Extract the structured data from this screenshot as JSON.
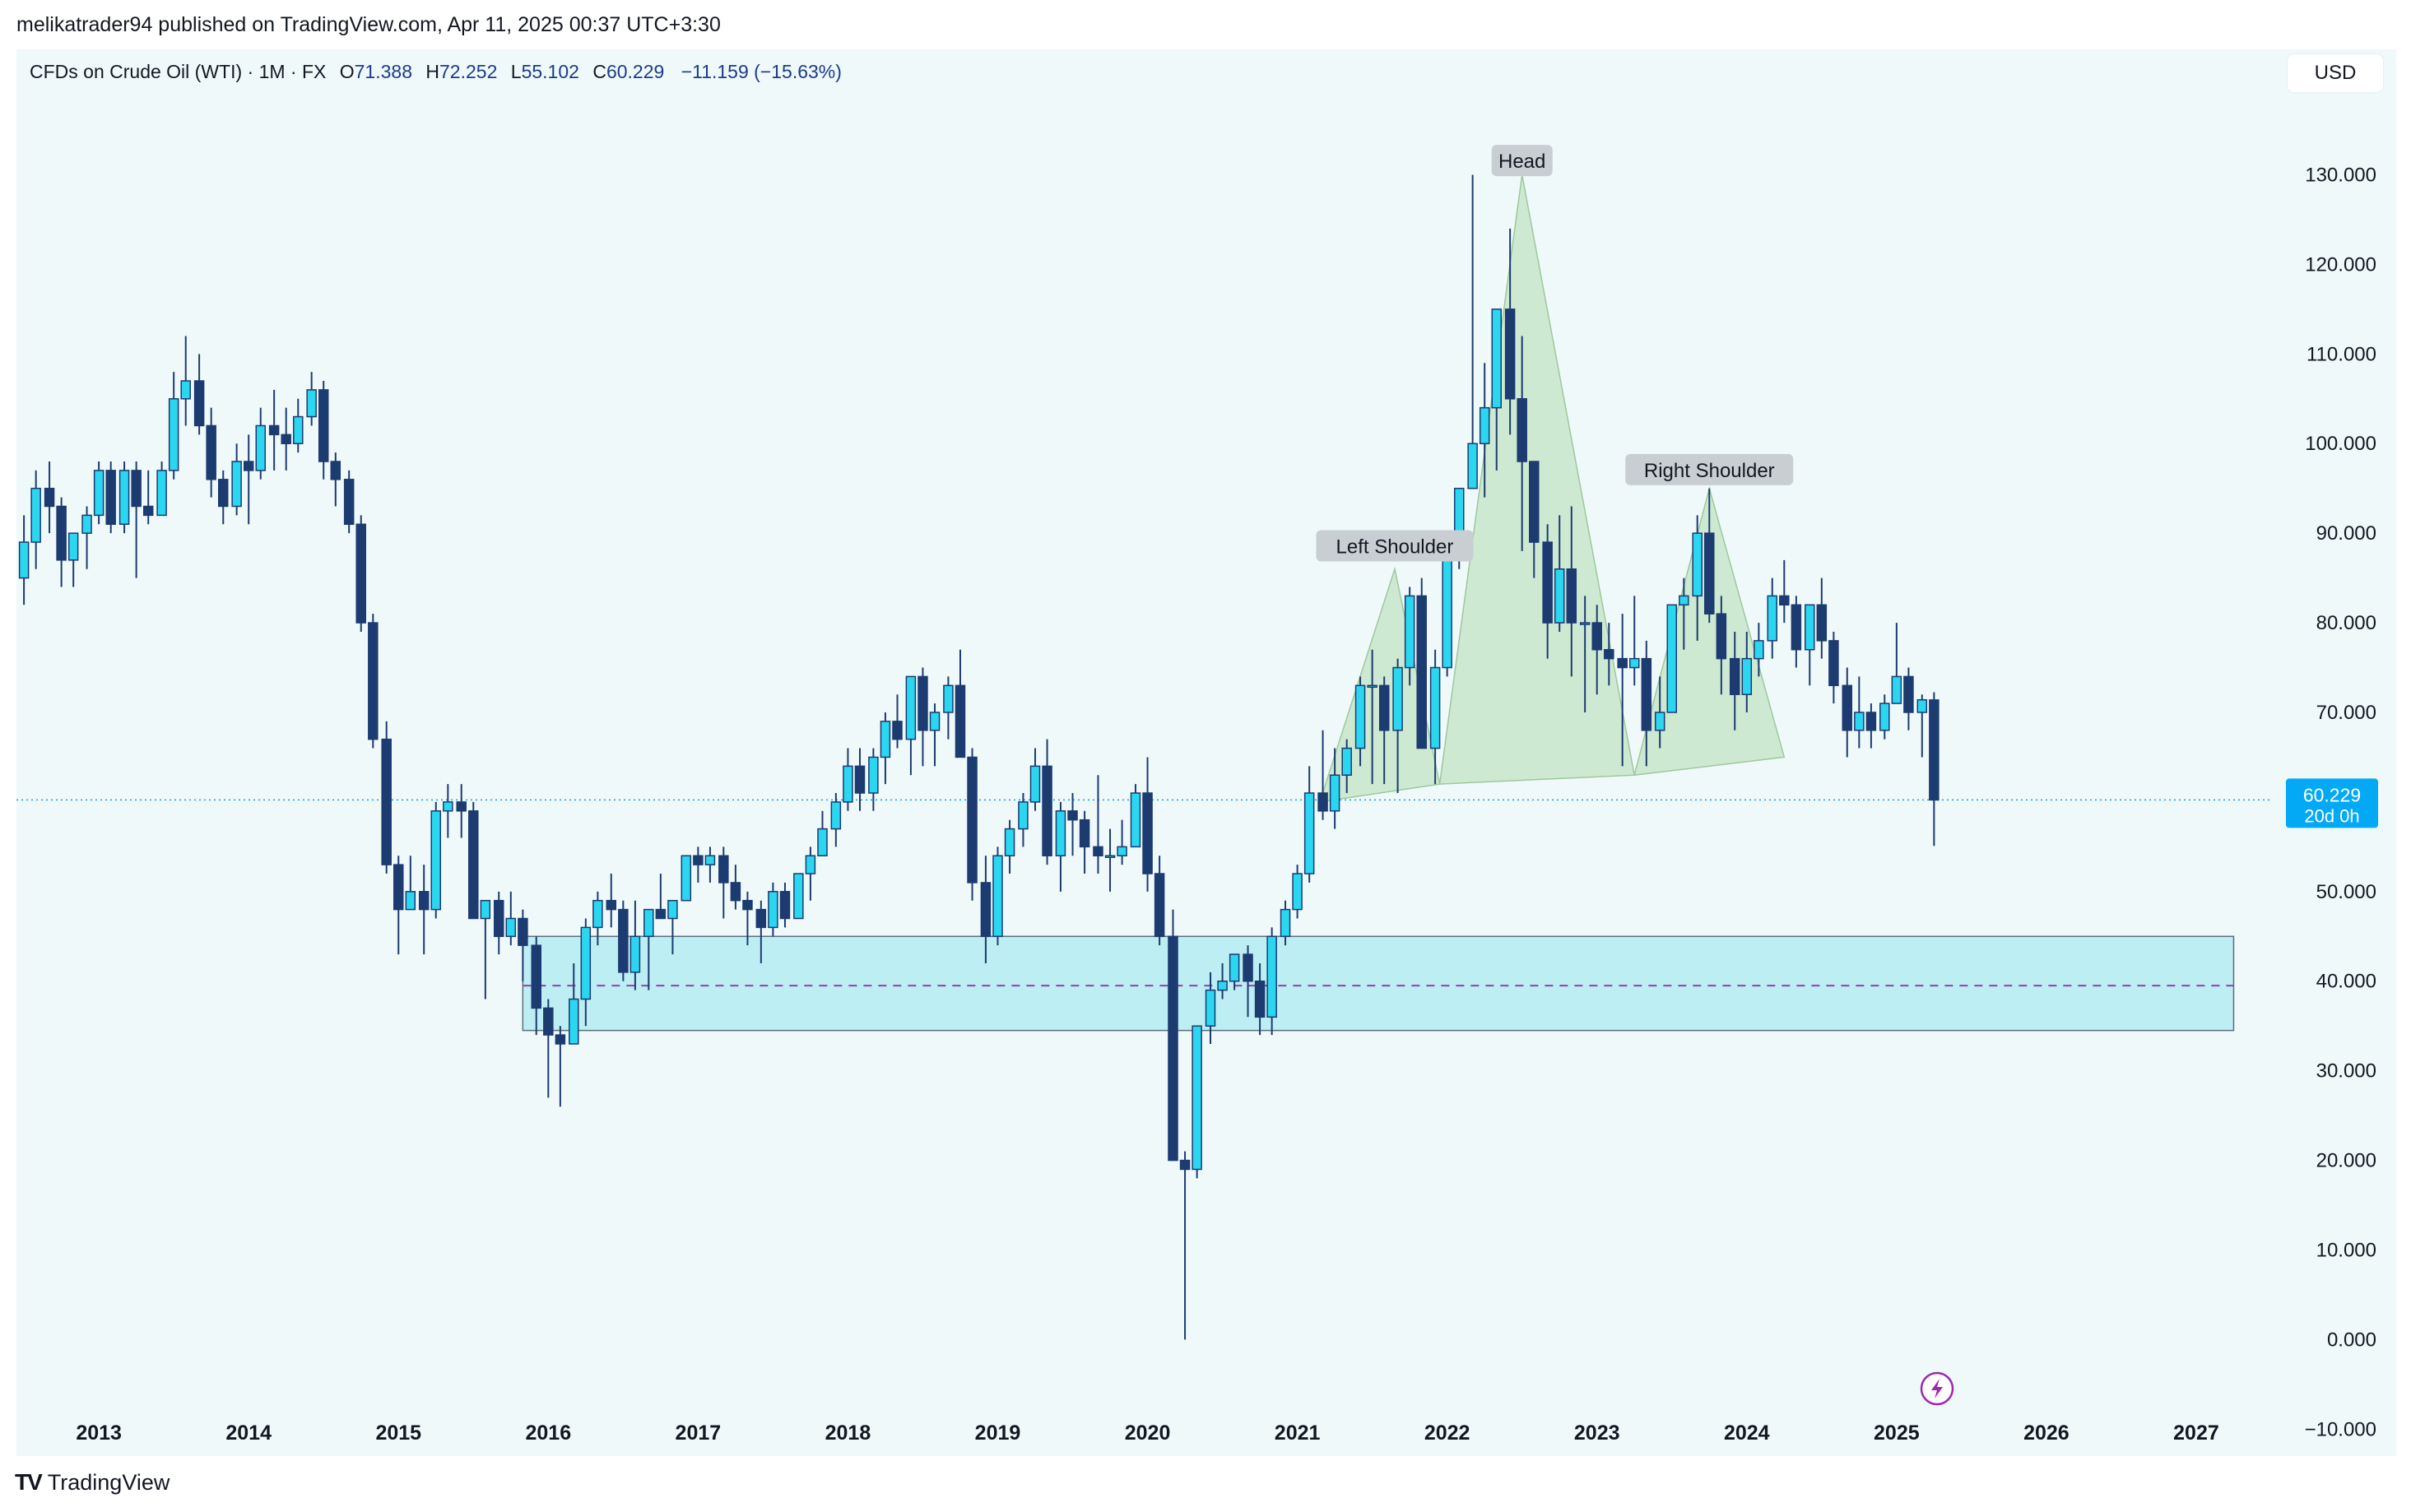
{
  "header": {
    "publisher_line": "melikatrader94 published on TradingView.com, Apr 11, 2025 00:37 UTC+3:30"
  },
  "legend": {
    "symbol": "CFDs on Crude Oil (WTI) · 1M · FX",
    "open_label": "O",
    "open": "71.388",
    "high_label": "H",
    "high": "72.252",
    "low_label": "L",
    "low": "55.102",
    "close_label": "C",
    "close": "60.229",
    "change": "−11.159 (−15.63%)"
  },
  "currency_button": "USD",
  "price_tag": {
    "price": "60.229",
    "countdown": "20d 0h"
  },
  "footer": {
    "logo_mark": "TV",
    "brand": "TradingView"
  },
  "colors": {
    "background": "#eff9fa",
    "bull": "#2ad6f0",
    "bear": "#1c3b70",
    "support_zone": "#bdeef3",
    "pattern_fill": "#c8e6c9",
    "price_tag": "#03a9f4",
    "dashed_midline": "#8e44ad"
  },
  "chart_data": {
    "type": "candlestick",
    "title": "CFDs on Crude Oil (WTI) · 1M · FX",
    "y_ticks": [
      "130.000",
      "120.000",
      "110.000",
      "100.000",
      "90.000",
      "80.000",
      "70.000",
      "60.000",
      "50.000",
      "40.000",
      "30.000",
      "20.000",
      "10.000",
      "0.000",
      "−10.000"
    ],
    "x_ticks": [
      "2013",
      "2014",
      "2015",
      "2016",
      "2017",
      "2018",
      "2019",
      "2020",
      "2021",
      "2022",
      "2023",
      "2024",
      "2025",
      "2026",
      "2027"
    ],
    "ylim": [
      -13,
      144
    ],
    "xlim": [
      2012.45,
      2027.5
    ],
    "current_price": 60.229,
    "support_zone": {
      "x_start": 2015.83,
      "x_end": 2027.25,
      "y_low": 34.5,
      "y_high": 45.0,
      "midline": 39.5
    },
    "annotations": [
      {
        "text": "Left Shoulder",
        "x": 2021.65,
        "y": 88.5
      },
      {
        "text": "Head",
        "x": 2022.5,
        "y": 131.5
      },
      {
        "text": "Right Shoulder",
        "x": 2023.75,
        "y": 97
      }
    ],
    "pattern_triangles": [
      {
        "name": "left-shoulder",
        "points": [
          [
            2021.15,
            60
          ],
          [
            2021.65,
            86
          ],
          [
            2021.95,
            62
          ]
        ]
      },
      {
        "name": "head",
        "points": [
          [
            2021.95,
            62
          ],
          [
            2022.5,
            130
          ],
          [
            2023.25,
            63
          ]
        ]
      },
      {
        "name": "right-shoulder",
        "points": [
          [
            2023.25,
            63
          ],
          [
            2023.75,
            95
          ],
          [
            2024.25,
            65
          ]
        ]
      }
    ],
    "candles": [
      [
        2012.5,
        85,
        92,
        82,
        89
      ],
      [
        2012.58,
        89,
        97,
        86,
        95
      ],
      [
        2012.67,
        95,
        98,
        90,
        93
      ],
      [
        2012.75,
        93,
        94,
        84,
        87
      ],
      [
        2012.83,
        87,
        90,
        84,
        90
      ],
      [
        2012.92,
        90,
        93,
        86,
        92
      ],
      [
        2013.0,
        92,
        98,
        91,
        97
      ],
      [
        2013.08,
        97,
        98,
        90,
        91
      ],
      [
        2013.17,
        91,
        98,
        90,
        97
      ],
      [
        2013.25,
        97,
        98,
        85,
        93
      ],
      [
        2013.33,
        93,
        97,
        91,
        92
      ],
      [
        2013.42,
        92,
        98,
        92,
        97
      ],
      [
        2013.5,
        97,
        108,
        96,
        105
      ],
      [
        2013.58,
        105,
        112,
        102,
        107
      ],
      [
        2013.67,
        107,
        110,
        101,
        102
      ],
      [
        2013.75,
        102,
        104,
        94,
        96
      ],
      [
        2013.83,
        96,
        97,
        91,
        93
      ],
      [
        2013.92,
        93,
        100,
        92,
        98
      ],
      [
        2014.0,
        98,
        101,
        91,
        97
      ],
      [
        2014.08,
        97,
        104,
        96,
        102
      ],
      [
        2014.17,
        102,
        106,
        97,
        101
      ],
      [
        2014.25,
        101,
        104,
        97,
        100
      ],
      [
        2014.33,
        100,
        105,
        99,
        103
      ],
      [
        2014.42,
        103,
        108,
        102,
        106
      ],
      [
        2014.5,
        106,
        107,
        96,
        98
      ],
      [
        2014.58,
        98,
        99,
        93,
        96
      ],
      [
        2014.67,
        96,
        97,
        90,
        91
      ],
      [
        2014.75,
        91,
        92,
        79,
        80
      ],
      [
        2014.83,
        80,
        81,
        66,
        67
      ],
      [
        2014.92,
        67,
        69,
        52,
        53
      ],
      [
        2015.0,
        53,
        54,
        43,
        48
      ],
      [
        2015.08,
        48,
        54,
        48,
        50
      ],
      [
        2015.17,
        50,
        53,
        43,
        48
      ],
      [
        2015.25,
        48,
        60,
        47,
        59
      ],
      [
        2015.33,
        59,
        62,
        56,
        60
      ],
      [
        2015.42,
        60,
        62,
        56,
        59
      ],
      [
        2015.5,
        59,
        60,
        47,
        47
      ],
      [
        2015.58,
        47,
        48,
        38,
        49
      ],
      [
        2015.67,
        49,
        50,
        43,
        45
      ],
      [
        2015.75,
        45,
        50,
        44,
        47
      ],
      [
        2015.83,
        47,
        48,
        40,
        44
      ],
      [
        2015.92,
        44,
        45,
        34,
        37
      ],
      [
        2016.0,
        37,
        38,
        27,
        34
      ],
      [
        2016.08,
        34,
        35,
        26,
        33
      ],
      [
        2016.17,
        33,
        42,
        33,
        38
      ],
      [
        2016.25,
        38,
        47,
        35,
        46
      ],
      [
        2016.33,
        46,
        50,
        44,
        49
      ],
      [
        2016.42,
        49,
        52,
        46,
        48
      ],
      [
        2016.5,
        48,
        49,
        40,
        41
      ],
      [
        2016.58,
        41,
        49,
        39,
        45
      ],
      [
        2016.67,
        45,
        48,
        39,
        48
      ],
      [
        2016.75,
        48,
        52,
        47,
        47
      ],
      [
        2016.83,
        47,
        48,
        43,
        49
      ],
      [
        2016.92,
        49,
        54,
        49,
        54
      ],
      [
        2017.0,
        54,
        55,
        51,
        53
      ],
      [
        2017.08,
        53,
        55,
        51,
        54
      ],
      [
        2017.17,
        54,
        55,
        47,
        51
      ],
      [
        2017.25,
        51,
        53,
        48,
        49
      ],
      [
        2017.33,
        49,
        50,
        44,
        48
      ],
      [
        2017.42,
        48,
        49,
        42,
        46
      ],
      [
        2017.5,
        46,
        51,
        45,
        50
      ],
      [
        2017.58,
        50,
        51,
        46,
        47
      ],
      [
        2017.67,
        47,
        52,
        47,
        52
      ],
      [
        2017.75,
        52,
        55,
        49,
        54
      ],
      [
        2017.83,
        54,
        59,
        54,
        57
      ],
      [
        2017.92,
        57,
        61,
        55,
        60
      ],
      [
        2018.0,
        60,
        66,
        59,
        64
      ],
      [
        2018.08,
        64,
        66,
        59,
        61
      ],
      [
        2018.17,
        61,
        66,
        59,
        65
      ],
      [
        2018.25,
        65,
        70,
        62,
        69
      ],
      [
        2018.33,
        69,
        72,
        66,
        67
      ],
      [
        2018.42,
        67,
        74,
        63,
        74
      ],
      [
        2018.5,
        74,
        75,
        64,
        68
      ],
      [
        2018.58,
        68,
        71,
        64,
        70
      ],
      [
        2018.67,
        70,
        74,
        67,
        73
      ],
      [
        2018.75,
        73,
        77,
        65,
        65
      ],
      [
        2018.83,
        65,
        66,
        49,
        51
      ],
      [
        2018.92,
        51,
        54,
        42,
        45
      ],
      [
        2019.0,
        45,
        55,
        44,
        54
      ],
      [
        2019.08,
        54,
        58,
        52,
        57
      ],
      [
        2019.17,
        57,
        61,
        55,
        60
      ],
      [
        2019.25,
        60,
        66,
        59,
        64
      ],
      [
        2019.33,
        64,
        67,
        53,
        54
      ],
      [
        2019.42,
        54,
        60,
        50,
        59
      ],
      [
        2019.5,
        59,
        61,
        54,
        58
      ],
      [
        2019.58,
        58,
        59,
        52,
        55
      ],
      [
        2019.67,
        55,
        63,
        52,
        54
      ],
      [
        2019.75,
        54,
        57,
        50,
        54
      ],
      [
        2019.83,
        54,
        58,
        53,
        55
      ],
      [
        2019.92,
        55,
        62,
        55,
        61
      ],
      [
        2020.0,
        61,
        65,
        50,
        52
      ],
      [
        2020.08,
        52,
        54,
        44,
        45
      ],
      [
        2020.17,
        45,
        48,
        20,
        20
      ],
      [
        2020.25,
        20,
        21,
        0,
        19
      ],
      [
        2020.33,
        19,
        35,
        18,
        35
      ],
      [
        2020.42,
        35,
        41,
        33,
        39
      ],
      [
        2020.5,
        39,
        42,
        38,
        40
      ],
      [
        2020.58,
        40,
        43,
        39,
        43
      ],
      [
        2020.67,
        43,
        44,
        36,
        40
      ],
      [
        2020.75,
        40,
        42,
        34,
        36
      ],
      [
        2020.83,
        36,
        46,
        34,
        45
      ],
      [
        2020.92,
        45,
        49,
        44,
        48
      ],
      [
        2021.0,
        48,
        53,
        47,
        52
      ],
      [
        2021.08,
        52,
        64,
        51,
        61
      ],
      [
        2021.17,
        61,
        68,
        58,
        59
      ],
      [
        2021.25,
        59,
        66,
        57,
        63
      ],
      [
        2021.33,
        63,
        67,
        61,
        66
      ],
      [
        2021.42,
        66,
        74,
        64,
        73
      ],
      [
        2021.5,
        73,
        77,
        62,
        73
      ],
      [
        2021.58,
        73,
        74,
        62,
        68
      ],
      [
        2021.67,
        68,
        76,
        61,
        75
      ],
      [
        2021.75,
        75,
        84,
        73,
        83
      ],
      [
        2021.83,
        83,
        85,
        66,
        66
      ],
      [
        2021.92,
        66,
        77,
        62,
        75
      ],
      [
        2022.0,
        75,
        88,
        74,
        88
      ],
      [
        2022.08,
        88,
        95,
        86,
        95
      ],
      [
        2022.17,
        95,
        130,
        95,
        100
      ],
      [
        2022.25,
        100,
        109,
        94,
        104
      ],
      [
        2022.33,
        104,
        115,
        97,
        115
      ],
      [
        2022.42,
        115,
        124,
        101,
        105
      ],
      [
        2022.5,
        105,
        112,
        88,
        98
      ],
      [
        2022.58,
        98,
        98,
        85,
        89
      ],
      [
        2022.67,
        89,
        91,
        76,
        80
      ],
      [
        2022.75,
        80,
        92,
        79,
        86
      ],
      [
        2022.83,
        86,
        93,
        74,
        80
      ],
      [
        2022.92,
        80,
        83,
        70,
        80
      ],
      [
        2023.0,
        80,
        82,
        72,
        77
      ],
      [
        2023.08,
        77,
        80,
        73,
        76
      ],
      [
        2023.17,
        76,
        81,
        64,
        75
      ],
      [
        2023.25,
        75,
        83,
        73,
        76
      ],
      [
        2023.33,
        76,
        78,
        64,
        68
      ],
      [
        2023.42,
        68,
        74,
        66,
        70
      ],
      [
        2023.5,
        70,
        82,
        70,
        82
      ],
      [
        2023.58,
        82,
        85,
        77,
        83
      ],
      [
        2023.67,
        83,
        92,
        78,
        90
      ],
      [
        2023.75,
        90,
        95,
        80,
        81
      ],
      [
        2023.83,
        81,
        83,
        72,
        76
      ],
      [
        2023.92,
        76,
        79,
        68,
        72
      ],
      [
        2024.0,
        72,
        79,
        70,
        76
      ],
      [
        2024.08,
        76,
        80,
        74,
        78
      ],
      [
        2024.17,
        78,
        85,
        76,
        83
      ],
      [
        2024.25,
        83,
        87,
        80,
        82
      ],
      [
        2024.33,
        82,
        83,
        75,
        77
      ],
      [
        2024.42,
        77,
        82,
        73,
        82
      ],
      [
        2024.5,
        82,
        85,
        76,
        78
      ],
      [
        2024.58,
        78,
        79,
        71,
        73
      ],
      [
        2024.67,
        73,
        75,
        65,
        68
      ],
      [
        2024.75,
        68,
        74,
        66,
        70
      ],
      [
        2024.83,
        70,
        71,
        66,
        68
      ],
      [
        2024.92,
        68,
        72,
        67,
        71
      ],
      [
        2025.0,
        71,
        80,
        71,
        74
      ],
      [
        2025.08,
        74,
        75,
        68,
        70
      ],
      [
        2025.17,
        70,
        72,
        65,
        71.4
      ],
      [
        2025.25,
        71.388,
        72.252,
        55.102,
        60.229
      ]
    ]
  }
}
